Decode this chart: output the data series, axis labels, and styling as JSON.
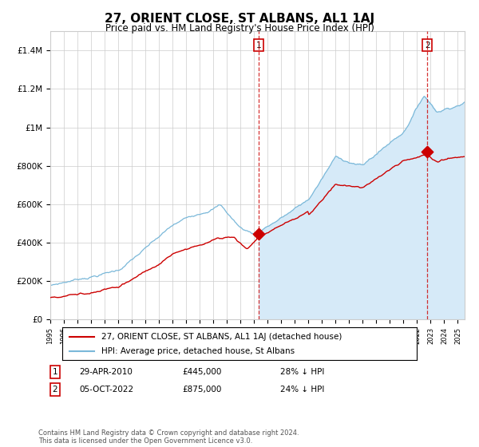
{
  "title": "27, ORIENT CLOSE, ST ALBANS, AL1 1AJ",
  "subtitle": "Price paid vs. HM Land Registry's House Price Index (HPI)",
  "ylim": [
    0,
    1500000
  ],
  "yticks": [
    0,
    200000,
    400000,
    600000,
    800000,
    1000000,
    1200000,
    1400000
  ],
  "ytick_labels": [
    "£0",
    "£200K",
    "£400K",
    "£600K",
    "£800K",
    "£1M",
    "£1.2M",
    "£1.4M"
  ],
  "year_start": 1995,
  "year_end": 2025,
  "hpi_line_color": "#7ab8d9",
  "hpi_fill_color": "#d6eaf8",
  "price_color": "#cc0000",
  "sale1_year": 2010.33,
  "sale1_price": 445000,
  "sale2_year": 2022.75,
  "sale2_price": 875000,
  "legend_house": "27, ORIENT CLOSE, ST ALBANS, AL1 1AJ (detached house)",
  "legend_hpi": "HPI: Average price, detached house, St Albans",
  "annotation1_date": "29-APR-2010",
  "annotation1_price": "£445,000",
  "annotation1_hpi": "28% ↓ HPI",
  "annotation2_date": "05-OCT-2022",
  "annotation2_price": "£875,000",
  "annotation2_hpi": "24% ↓ HPI",
  "footer": "Contains HM Land Registry data © Crown copyright and database right 2024.\nThis data is licensed under the Open Government Licence v3.0.",
  "bg_color": "#ffffff"
}
